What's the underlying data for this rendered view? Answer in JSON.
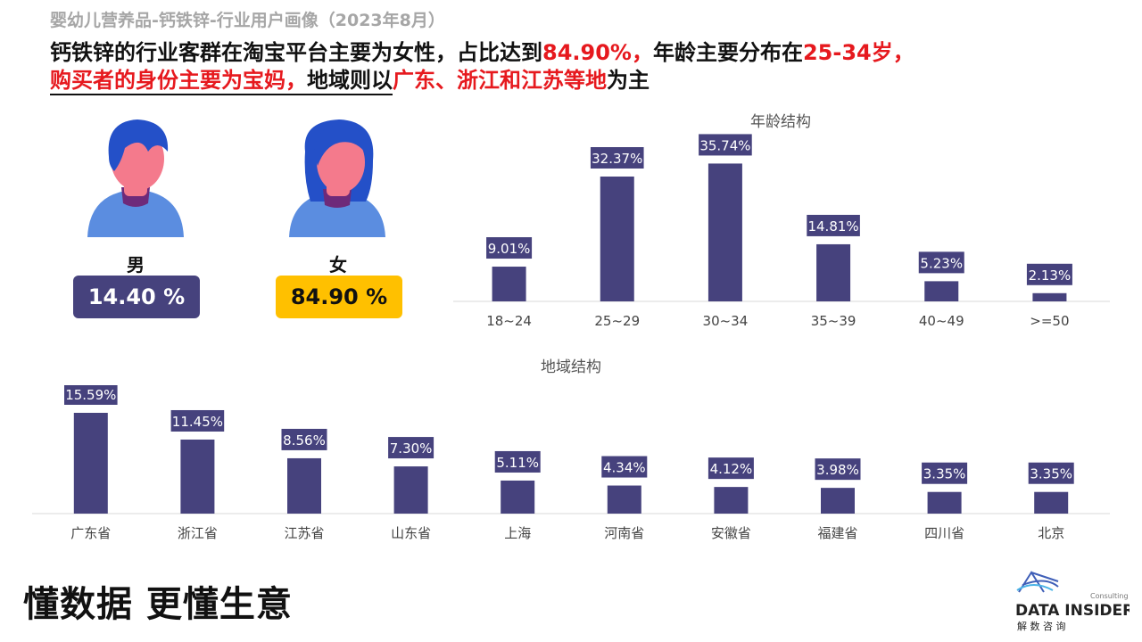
{
  "subtitle": "婴幼儿营养品-钙铁锌-行业用户画像（2023年8月）",
  "headline": {
    "p1": "钙铁锌的行业客群在淘宝平台主要为女性，占比达到",
    "p2": "84.90%，",
    "p3": "年龄主要分布在",
    "p4": "25-34岁，",
    "p5": "购买者的身份主要为宝妈，",
    "p6": "地域则以",
    "p7": "广东、浙江和江苏等地",
    "p8": "为主"
  },
  "gender": {
    "male_label": "男",
    "male_value": "14.40 %",
    "female_label": "女",
    "female_value": "84.90 %"
  },
  "colors": {
    "bar": "#46427d",
    "male_box": "#46427d",
    "female_box": "#ffc000",
    "highlight": "#e6191e"
  },
  "chart_data": [
    {
      "type": "bar",
      "title": "年龄结构",
      "categories": [
        "18~24",
        "25~29",
        "30~34",
        "35~39",
        "40~49",
        ">=50"
      ],
      "values": [
        9.01,
        32.37,
        35.74,
        14.81,
        5.23,
        2.13
      ],
      "labels": [
        "9.01%",
        "32.37%",
        "35.74%",
        "14.81%",
        "5.23%",
        "2.13%"
      ],
      "ylim": [
        0,
        40
      ],
      "grid": false
    },
    {
      "type": "bar",
      "title": "地域结构",
      "categories": [
        "广东省",
        "浙江省",
        "江苏省",
        "山东省",
        "上海",
        "河南省",
        "安徽省",
        "福建省",
        "四川省",
        "北京"
      ],
      "values": [
        15.59,
        11.45,
        8.56,
        7.3,
        5.11,
        4.34,
        4.12,
        3.98,
        3.35,
        3.35
      ],
      "labels": [
        "15.59%",
        "11.45%",
        "8.56%",
        "7.30%",
        "5.11%",
        "4.34%",
        "4.12%",
        "3.98%",
        "3.35%",
        "3.35%"
      ],
      "ylim": [
        0,
        16
      ],
      "grid": false
    }
  ],
  "footer": {
    "slogan": "懂数据 更懂生意",
    "logo_small": "Consulting",
    "logo_main": "DATA INSIDER",
    "logo_cn": "解 数 咨 询"
  }
}
